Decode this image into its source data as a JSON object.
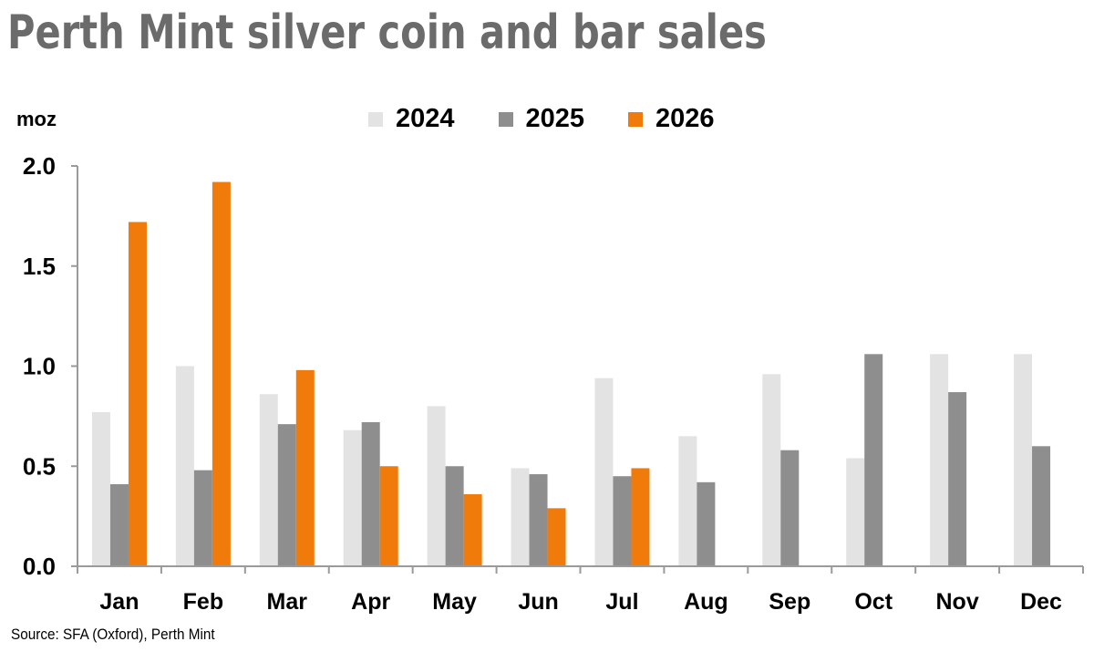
{
  "title": "Perth Mint silver coin and bar sales",
  "source": "Source: SFA (Oxford), Perth Mint",
  "colors": {
    "2024": "#e3e3e3",
    "2025": "#8e8e8e",
    "2026": "#f07a0a",
    "axis": "#9a9a9a"
  },
  "chart_data": {
    "type": "bar",
    "title": "Perth Mint silver coin and bar sales",
    "ylabel": "moz",
    "xlabel": "",
    "ylim": [
      0,
      2.0
    ],
    "yticks": [
      "0.0",
      "0.5",
      "1.0",
      "1.5",
      "2.0"
    ],
    "grid": false,
    "legend_position": "top",
    "categories": [
      "Jan",
      "Feb",
      "Mar",
      "Apr",
      "May",
      "Jun",
      "Jul",
      "Aug",
      "Sep",
      "Oct",
      "Nov",
      "Dec"
    ],
    "series": [
      {
        "name": "2024",
        "values": [
          0.77,
          1.0,
          0.86,
          0.68,
          0.8,
          0.49,
          0.94,
          0.65,
          0.96,
          0.54,
          1.06,
          1.06
        ]
      },
      {
        "name": "2025",
        "values": [
          0.41,
          0.48,
          0.71,
          0.72,
          0.5,
          0.46,
          0.45,
          0.42,
          0.58,
          1.06,
          0.87,
          0.6
        ]
      },
      {
        "name": "2026",
        "values": [
          1.72,
          1.92,
          0.98,
          0.5,
          0.36,
          0.29,
          0.49,
          null,
          null,
          null,
          null,
          null
        ]
      }
    ]
  }
}
